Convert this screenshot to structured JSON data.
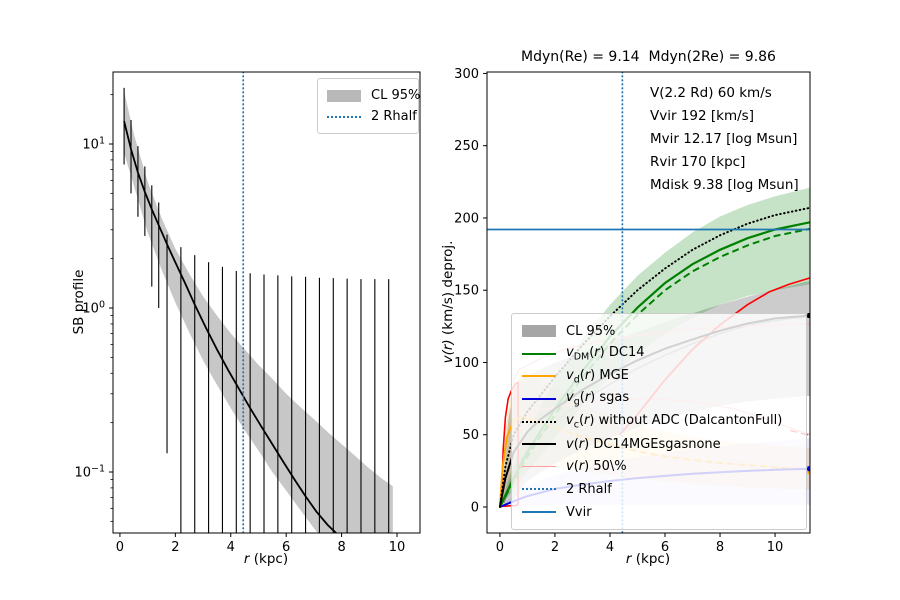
{
  "figure": {
    "bg": "#ffffff",
    "text_color": "#000000",
    "accent_blue": "#1f77b4"
  },
  "left_panel": {
    "ylabel": "SB profile",
    "xlabel_sym": "r",
    "xlabel_rest": " (kpc)",
    "legend": {
      "items": [
        {
          "type": "patch",
          "color": "#b8b8b8",
          "label": "CL 95%"
        },
        {
          "type": "dotted",
          "color": "#1f77b4",
          "label": "2 Rhalf"
        }
      ]
    }
  },
  "right_panel": {
    "title": "Mdyn(Re) = 9.14  Mdyn(2Re) = 9.86",
    "ylabel_sym": "v(r)",
    "ylabel_rest": " (km/s) deproj.",
    "xlabel_sym": "r",
    "xlabel_rest": " (kpc)",
    "annotations": [
      "V(2.2 Rd) 60 km/s",
      "Vvir 192 [km/s]",
      "Mvir 12.17 [log Msun]",
      "Rvir 170 [kpc]",
      "Mdisk 9.38 [log Msun]"
    ],
    "legend": {
      "items": [
        {
          "type": "patch",
          "color": "#a6a6a6",
          "label": "CL 95%"
        },
        {
          "type": "line",
          "color": "#008000",
          "math": {
            "sym": "v",
            "sub": "DM",
            "after": " DC14"
          }
        },
        {
          "type": "line",
          "color": "#ffa500",
          "math": {
            "sym": "v",
            "sub": "d",
            "after": " MGE"
          }
        },
        {
          "type": "line",
          "color": "#0000dd",
          "math": {
            "sym": "v",
            "sub": "g",
            "after": " sgas"
          }
        },
        {
          "type": "dotted",
          "color": "#000000",
          "math": {
            "sym": "v",
            "sub": "c",
            "after": " without ADC (DalcantonFull)"
          }
        },
        {
          "type": "line",
          "color": "#000000",
          "math": {
            "sym": "v",
            "sub": "",
            "after": " DC14MGEsgasnone"
          }
        },
        {
          "type": "thin",
          "color": "#ff9e9e",
          "math": {
            "sym": "v",
            "sub": "",
            "after": " 50\\%"
          }
        },
        {
          "type": "dotted",
          "color": "#1f77b4",
          "label": "2 Rhalf"
        },
        {
          "type": "line",
          "color": "#1f77b4",
          "label": "Vvir"
        }
      ]
    }
  },
  "chart_data": [
    {
      "panel": "left",
      "type": "line",
      "y_scale": "log",
      "xlabel": "r (kpc)",
      "ylabel": "SB profile",
      "x_ticks": [
        0,
        2,
        4,
        6,
        8,
        10
      ],
      "y_tick_exponents": [
        1,
        0,
        -1
      ],
      "xlim": [
        -0.25,
        10.83
      ],
      "ylim_log10": [
        -1.372,
        1.439
      ],
      "vline_2rhalf_x": 4.45,
      "line": {
        "x": [
          0.15,
          0.4,
          0.65,
          0.9,
          1.15,
          1.4,
          1.7,
          2.0,
          2.35,
          2.7,
          3.1,
          3.5,
          3.9,
          4.3,
          4.7,
          5.1,
          5.5,
          5.9,
          6.3,
          6.7,
          7.1,
          7.5,
          7.8
        ],
        "y": [
          13.8,
          9.3,
          6.7,
          5.1,
          4.0,
          3.2,
          2.45,
          1.9,
          1.42,
          1.05,
          0.76,
          0.56,
          0.42,
          0.32,
          0.245,
          0.19,
          0.148,
          0.115,
          0.09,
          0.071,
          0.057,
          0.0475,
          0.0425
        ]
      },
      "band_cl95": {
        "x": [
          0.15,
          0.5,
          1,
          1.5,
          2,
          2.5,
          3,
          3.5,
          4,
          4.5,
          5,
          5.5,
          6,
          6.5,
          7,
          7.5,
          8,
          8.5,
          9,
          9.5,
          9.85
        ],
        "upper": [
          21,
          11.5,
          5.9,
          3.55,
          2.3,
          1.62,
          1.18,
          0.9,
          0.7,
          0.56,
          0.45,
          0.37,
          0.3,
          0.25,
          0.21,
          0.175,
          0.148,
          0.125,
          0.105,
          0.09,
          0.082
        ],
        "lower": [
          8.8,
          5.6,
          2.9,
          1.72,
          1.08,
          0.71,
          0.48,
          0.34,
          0.245,
          0.18,
          0.135,
          0.1,
          0.077,
          0.059,
          0.0455,
          0.0355,
          0.028,
          0.022,
          0.0175,
          0.014,
          0.0125
        ]
      },
      "errorbars": [
        [
          0.15,
          7.5,
          22
        ],
        [
          0.4,
          5.0,
          14
        ],
        [
          0.65,
          3.6,
          9.7
        ],
        [
          0.9,
          2.75,
          7.3
        ],
        [
          1.15,
          1.35,
          5.6
        ],
        [
          1.4,
          1.0,
          4.4
        ],
        [
          1.7,
          0.13,
          2.8
        ],
        [
          2.2,
          0.041,
          2.35
        ],
        [
          2.7,
          0.041,
          2.1
        ],
        [
          3.2,
          0.041,
          1.9
        ],
        [
          3.7,
          0.041,
          1.78
        ],
        [
          4.2,
          0.041,
          1.68
        ],
        [
          4.7,
          0.041,
          1.63
        ],
        [
          5.2,
          0.041,
          1.6
        ],
        [
          5.7,
          0.041,
          1.58
        ],
        [
          6.2,
          0.041,
          1.56
        ],
        [
          6.7,
          0.041,
          1.55
        ],
        [
          7.2,
          0.041,
          1.53
        ],
        [
          7.7,
          0.041,
          1.52
        ],
        [
          8.2,
          0.041,
          1.51
        ],
        [
          8.7,
          0.041,
          1.5
        ],
        [
          9.2,
          0.041,
          1.5
        ],
        [
          9.7,
          0.041,
          1.5
        ]
      ]
    },
    {
      "panel": "right",
      "type": "line",
      "title": "Mdyn(Re) = 9.14  Mdyn(2Re) = 9.86",
      "xlabel": "r (kpc)",
      "ylabel": "v(r) (km/s) deproj.",
      "x_ticks": [
        0,
        2,
        4,
        6,
        8,
        10
      ],
      "y_ticks": [
        0,
        50,
        100,
        150,
        200,
        250,
        300
      ],
      "xlim": [
        -0.47,
        11.27
      ],
      "ylim": [
        -18,
        301
      ],
      "vvir_y": 192,
      "vline_2rhalf_x": 4.45,
      "bands": [
        {
          "name": "vd-cl-band",
          "color": "#ffa500",
          "opacity": 0.22,
          "x": [
            0,
            0.2,
            0.5,
            0.8,
            1.2,
            2,
            3,
            4,
            5,
            6,
            7,
            8,
            9,
            10,
            11.27
          ],
          "upper": [
            0,
            55,
            85,
            94,
            92,
            82,
            71,
            63,
            57,
            52,
            48.5,
            46,
            44,
            42.5,
            41
          ],
          "lower": [
            0,
            6,
            16,
            24,
            28,
            27.5,
            25,
            22,
            19.5,
            17.5,
            16,
            14.5,
            13.5,
            12.5,
            12
          ]
        },
        {
          "name": "vg-cl-band",
          "color": "#3333ff",
          "opacity": 0.12,
          "x": [
            0,
            0.5,
            1,
            2,
            3,
            4,
            5,
            6,
            7,
            8,
            9,
            10,
            11.27
          ],
          "upper": [
            0,
            8,
            15,
            22,
            27,
            31,
            34.5,
            37.5,
            40,
            42,
            44,
            45.5,
            47.5
          ],
          "lower": [
            0,
            0.5,
            1,
            1.5,
            1.5,
            1.5,
            1.5,
            1.5,
            1.5,
            1.5,
            1.5,
            1.5,
            1.5
          ]
        },
        {
          "name": "v-cl95-band",
          "color": "#808080",
          "opacity": 0.4,
          "x": [
            0.1,
            0.3,
            0.5,
            0.66,
            1,
            2,
            3,
            4,
            5,
            6,
            7,
            8,
            9,
            10,
            11.27
          ],
          "upper": [
            10,
            60,
            80,
            87,
            91,
            100,
            107,
            114,
            121,
            128,
            134,
            140,
            145.5,
            150.5,
            156.5
          ],
          "lower": [
            0,
            2,
            6,
            10,
            18,
            30,
            40,
            48,
            55,
            61,
            66,
            70,
            73,
            75,
            77
          ]
        },
        {
          "name": "vdm-cl-band",
          "color": "#008000",
          "opacity": 0.22,
          "x": [
            0,
            0.5,
            1,
            2,
            3,
            4,
            5,
            6,
            7,
            8,
            9,
            10,
            11.27
          ],
          "upper": [
            0,
            30,
            52,
            88,
            116,
            140,
            160,
            176,
            190,
            201,
            209,
            215,
            221
          ],
          "lower": [
            0,
            12,
            24,
            48,
            70,
            90,
            106,
            120,
            131,
            140,
            146,
            150,
            154
          ]
        }
      ],
      "series": [
        {
          "name": "v-median-gray",
          "color": "#8c8c8c",
          "width": 1.5,
          "style": "solid",
          "x": [
            0.15,
            0.5,
            1,
            1.5,
            2,
            2.5,
            3,
            3.5,
            4,
            4.5,
            5,
            5.5,
            6,
            6.5,
            7,
            7.5,
            8,
            8.5,
            9,
            9.5,
            10,
            10.5,
            11.27
          ],
          "y": [
            3,
            25,
            40,
            50,
            59,
            66,
            73,
            79,
            85,
            90.5,
            96,
            100.5,
            105,
            109,
            113,
            116.5,
            120,
            123,
            125.5,
            127.5,
            129,
            130.2,
            131.5
          ]
        },
        {
          "name": "v50-contour-inner",
          "color": "#ffa0a0",
          "width": 1.2,
          "style": "solid",
          "x": [
            11.27,
            10,
            8.5,
            7,
            5.5,
            4,
            2.5,
            1.5,
            0.7,
            0.5,
            0.55,
            0.62,
            0.8,
            1.5,
            2.5,
            4,
            5.5,
            7,
            8.5,
            9.5,
            10.5,
            11.27
          ],
          "y": [
            127,
            126,
            125,
            123,
            120,
            116,
            110,
            103,
            95,
            88,
            75,
            66,
            62,
            67,
            71,
            74,
            75,
            73,
            68,
            62,
            55,
            50
          ]
        },
        {
          "name": "v-red-contour",
          "color": "#ff0000",
          "width": 1.6,
          "style": "solid",
          "x": [
            0.05,
            0.12,
            0.2,
            0.3,
            0.45,
            0.58,
            0.66,
            0.66,
            0.6,
            0.08
          ],
          "y": [
            0,
            40,
            62,
            75,
            82,
            85.5,
            86,
            2,
            1,
            0.5
          ]
        },
        {
          "name": "v-red-branch",
          "color": "#ff0000",
          "width": 1.6,
          "style": "solid",
          "x": [
            4.35,
            5,
            6,
            7,
            8,
            9,
            9.8,
            10.5,
            11.27
          ],
          "y": [
            50,
            64,
            88,
            109,
            126,
            140,
            149,
            154,
            158.5
          ]
        },
        {
          "name": "v-red-dashed-end",
          "color": "#ff0000",
          "width": 1.4,
          "style": "dashed",
          "x": [
            10.55,
            11.27
          ],
          "y": [
            53,
            49.5
          ]
        },
        {
          "name": "vd-mge-solid",
          "color": "#ffa500",
          "width": 2,
          "style": "solid",
          "x": [
            0,
            0.1,
            0.25,
            0.5,
            0.75,
            1,
            1.25
          ],
          "y": [
            0,
            28,
            48,
            60,
            62,
            61,
            59.5
          ]
        },
        {
          "name": "vd-mge-dashed",
          "color": "#ffa500",
          "width": 2,
          "style": "dashed",
          "x": [
            1.25,
            2,
            3,
            4,
            5,
            6,
            7,
            8,
            9,
            10,
            11.27
          ],
          "y": [
            59.5,
            55,
            48.5,
            43,
            38.5,
            35,
            32.5,
            30.5,
            29,
            27.5,
            26
          ],
          "marker_end": [
            11.27,
            24.5
          ]
        },
        {
          "name": "vg-sgas",
          "color": "#0000dd",
          "width": 2,
          "style": "solid",
          "x": [
            0,
            0.5,
            1,
            2,
            3,
            4,
            5,
            6,
            7,
            8,
            9,
            10,
            11.27
          ],
          "y": [
            0,
            4,
            7.5,
            12.5,
            15.5,
            18,
            20,
            21.5,
            23,
            24,
            25,
            25.7,
            26.5
          ],
          "marker_end": [
            11.27,
            26.5
          ]
        },
        {
          "name": "vdm-dc14-solid",
          "color": "#008000",
          "width": 2.2,
          "style": "solid",
          "x": [
            0,
            0.5,
            1,
            2,
            3,
            4,
            5,
            6,
            7,
            8,
            9,
            10,
            11.27
          ],
          "y": [
            0,
            20,
            38,
            68,
            94,
            118,
            138,
            155,
            168,
            178,
            186,
            192,
            197
          ]
        },
        {
          "name": "vdm-dc14-dashed",
          "color": "#008000",
          "width": 2,
          "style": "dashed",
          "x": [
            0,
            0.5,
            1,
            2,
            3,
            4,
            5,
            6,
            7,
            8,
            9,
            10,
            11.27
          ],
          "y": [
            0,
            18,
            35,
            64,
            89.5,
            113,
            133,
            150,
            163,
            173,
            181,
            187.5,
            192.5
          ]
        },
        {
          "name": "vc-without-adc",
          "color": "#000000",
          "width": 2,
          "style": "dotted",
          "x": [
            0,
            0.2,
            0.5,
            1,
            2,
            3,
            4,
            5,
            6,
            7,
            8,
            9,
            10,
            11.27
          ],
          "y": [
            0,
            28,
            50,
            66,
            90,
            112,
            132,
            150,
            165,
            178,
            188,
            196,
            202,
            207
          ]
        },
        {
          "name": "v-dc14mgesgasnone",
          "color": "#000000",
          "width": 2,
          "style": "solid",
          "x": [
            0,
            0.2,
            0.5,
            1,
            1.5,
            2,
            3,
            4,
            5,
            6,
            7,
            8,
            9,
            10,
            11.27
          ],
          "y": [
            0,
            20,
            38,
            52,
            61,
            68,
            81,
            92,
            101.5,
            109.5,
            116,
            122,
            127,
            130.5,
            132.5
          ],
          "marker_end": [
            11.27,
            132.5
          ]
        }
      ]
    }
  ]
}
